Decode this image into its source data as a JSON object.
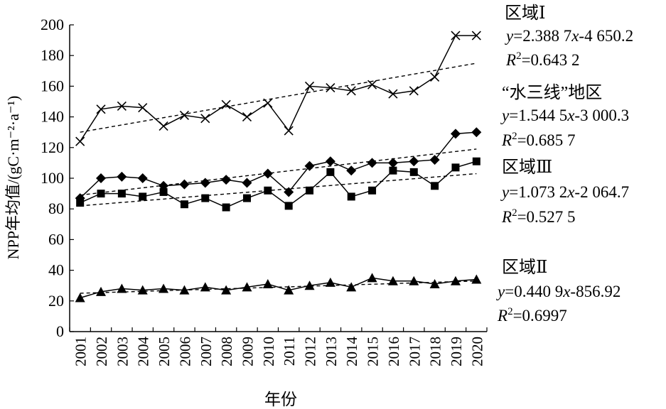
{
  "chart_data": {
    "type": "line",
    "xlabel": "年份",
    "ylabel": "NPP年均值/(gC·m⁻²·a⁻¹)",
    "ylim": [
      0,
      200
    ],
    "yticks": [
      0,
      20,
      40,
      60,
      80,
      100,
      120,
      140,
      160,
      180,
      200
    ],
    "x": [
      "2001",
      "2002",
      "2003",
      "2004",
      "2005",
      "2006",
      "2007",
      "2008",
      "2009",
      "2010",
      "2011",
      "2012",
      "2013",
      "2014",
      "2015",
      "2016",
      "2017",
      "2018",
      "2019",
      "2020"
    ],
    "grid": false,
    "series": [
      {
        "name": "区域Ⅰ",
        "marker": "x",
        "values": [
          124,
          145,
          147,
          146,
          134,
          141,
          139,
          148,
          140,
          149,
          131,
          160,
          159,
          157,
          161,
          155,
          157,
          166,
          193,
          193
        ],
        "trend": [
          130,
          175
        ],
        "equation": "y=2.388 7x-4 650.2",
        "r2": "R2=0.643 2"
      },
      {
        "name": "“水三线”地区",
        "marker": "diamond",
        "values": [
          87,
          100,
          101,
          100,
          95,
          96,
          97,
          99,
          97,
          103,
          91,
          108,
          111,
          105,
          110,
          110,
          111,
          112,
          129,
          130
        ],
        "trend": [
          89,
          119
        ],
        "equation": "y=1.544 5x-3 000.3",
        "r2": "R2=0.685 7"
      },
      {
        "name": "区域Ⅲ",
        "marker": "square",
        "values": [
          84,
          90,
          90,
          88,
          91,
          83,
          87,
          81,
          87,
          92,
          82,
          92,
          104,
          88,
          92,
          105,
          104,
          95,
          107,
          111
        ],
        "trend": [
          82,
          103
        ],
        "equation": "y=1.073 2x-2 064.7",
        "r2": "R2=0.527 5"
      },
      {
        "name": "区域Ⅱ",
        "marker": "triangle",
        "values": [
          22,
          26,
          28,
          27,
          28,
          27,
          29,
          27,
          29,
          31,
          27,
          30,
          32,
          29,
          35,
          33,
          33,
          31,
          33,
          34
        ],
        "trend": [
          25,
          33
        ],
        "equation": "y=0.440 9x-856.92",
        "r2": "R2=0.6997"
      }
    ]
  }
}
